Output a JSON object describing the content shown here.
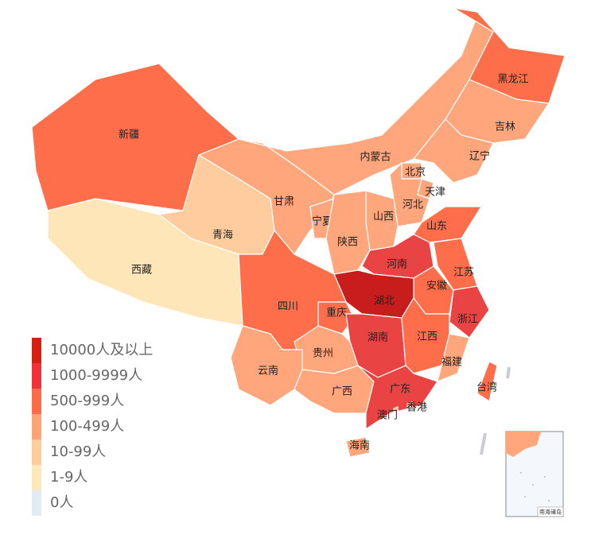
{
  "regions": [
    {
      "name": "新疆",
      "color": "#ff6e4a"
    },
    {
      "name": "西藏",
      "color": "#ffe6b8"
    },
    {
      "name": "青海",
      "color": "#ffcc9e"
    },
    {
      "name": "甘肃",
      "color": "#ffa67c"
    },
    {
      "name": "内蒙古",
      "color": "#ffa67c"
    },
    {
      "name": "黑龙江",
      "color": "#ff6e4a"
    },
    {
      "name": "吉林",
      "color": "#ffa67c"
    },
    {
      "name": "辽宁",
      "color": "#ffa67c"
    },
    {
      "name": "北京",
      "color": "#ffa67c"
    },
    {
      "name": "天津",
      "color": "#ffa67c"
    },
    {
      "name": "河北",
      "color": "#ffa67c"
    },
    {
      "name": "山西",
      "color": "#ffa67c"
    },
    {
      "name": "宁夏",
      "color": "#ffa67c"
    },
    {
      "name": "陕西",
      "color": "#ffa67c"
    },
    {
      "name": "山东",
      "color": "#ff6e4a"
    },
    {
      "name": "河南",
      "color": "#ea4343",
      "label_color": "#ffffff"
    },
    {
      "name": "江苏",
      "color": "#ff6e4a"
    },
    {
      "name": "安徽",
      "color": "#ff6e4a"
    },
    {
      "name": "浙江",
      "color": "#ea4343",
      "label_color": "#ffffff"
    },
    {
      "name": "湖北",
      "color": "#c81d1d",
      "label_color": "#ffffff"
    },
    {
      "name": "重庆",
      "color": "#ff6e4a"
    },
    {
      "name": "四川",
      "color": "#ff6e4a"
    },
    {
      "name": "湖南",
      "color": "#ea4343",
      "label_color": "#ffffff"
    },
    {
      "name": "江西",
      "color": "#ff6e4a"
    },
    {
      "name": "福建",
      "color": "#ffa67c"
    },
    {
      "name": "贵州",
      "color": "#ffa67c"
    },
    {
      "name": "云南",
      "color": "#ffa67c"
    },
    {
      "name": "广西",
      "color": "#ffa67c"
    },
    {
      "name": "广东",
      "color": "#ea4343",
      "label_color": "#ffffff"
    },
    {
      "name": "海南",
      "color": "#ffa67c"
    },
    {
      "name": "台湾",
      "color": "#ff6e4a"
    },
    {
      "name": "香港",
      "color": "#ff6e4a"
    },
    {
      "name": "澳门",
      "color": "#ffa67c"
    }
  ],
  "legend": [
    {
      "label": "10000人及以上",
      "color": "#d7200f"
    },
    {
      "label": "1000-9999人",
      "color": "#f2303a"
    },
    {
      "label": "500-999人",
      "color": "#ff6a47"
    },
    {
      "label": "100-499人",
      "color": "#ffa474"
    },
    {
      "label": "10-99人",
      "color": "#ffcc9a"
    },
    {
      "label": "1-9人",
      "color": "#ffe8b8"
    },
    {
      "label": "0人",
      "color": "#e2ebf4"
    }
  ],
  "inset_label": "南海诸岛"
}
